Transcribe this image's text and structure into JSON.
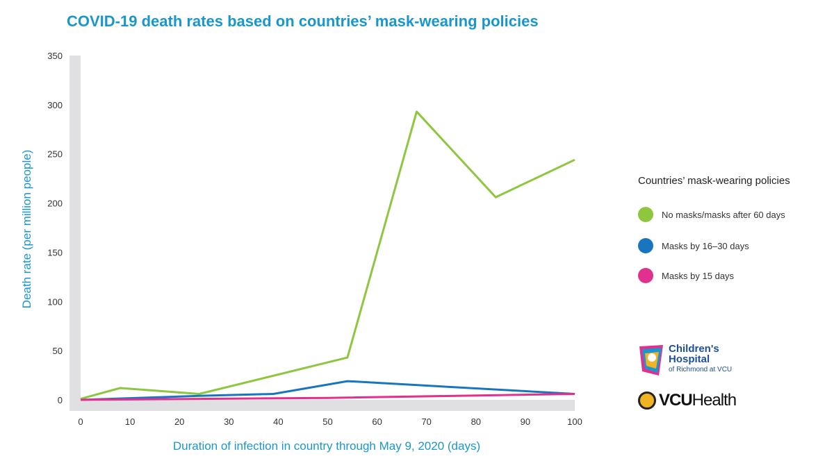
{
  "chart_data": {
    "type": "line",
    "title": "COVID-19 death rates based on countries’ mask-wearing policies",
    "xlabel": "Duration of infection in country through May 9, 2020 (days)",
    "ylabel": "Death rate (per million people)",
    "xlim": [
      0,
      100
    ],
    "ylim": [
      0,
      350
    ],
    "xticks": [
      0,
      10,
      20,
      30,
      40,
      50,
      60,
      70,
      80,
      90,
      100
    ],
    "yticks": [
      0,
      50,
      100,
      150,
      200,
      250,
      300,
      350
    ],
    "grid": false,
    "legend_position": "right",
    "legend_title": "Countries’ mask-wearing policies",
    "series": [
      {
        "name": "No masks/masks after 60 days",
        "color": "#8dc63f",
        "x": [
          0,
          8,
          24,
          54,
          68,
          84,
          100
        ],
        "y": [
          1,
          12,
          6,
          43,
          293,
          206,
          244
        ]
      },
      {
        "name": "Masks by 16–30 days",
        "color": "#1a75c0",
        "x": [
          0,
          24,
          39,
          54,
          100
        ],
        "y": [
          0,
          4,
          6,
          19,
          6
        ]
      },
      {
        "name": "Masks by 15 days",
        "color": "#e0318e",
        "x": [
          0,
          50,
          100
        ],
        "y": [
          0,
          2,
          6
        ]
      }
    ]
  },
  "logos": {
    "childrens_line1": "Children's",
    "childrens_line2": "Hospital",
    "childrens_line3": "of Richmond at VCU",
    "vcu_bold": "VCU",
    "vcu_regular": "Health"
  }
}
